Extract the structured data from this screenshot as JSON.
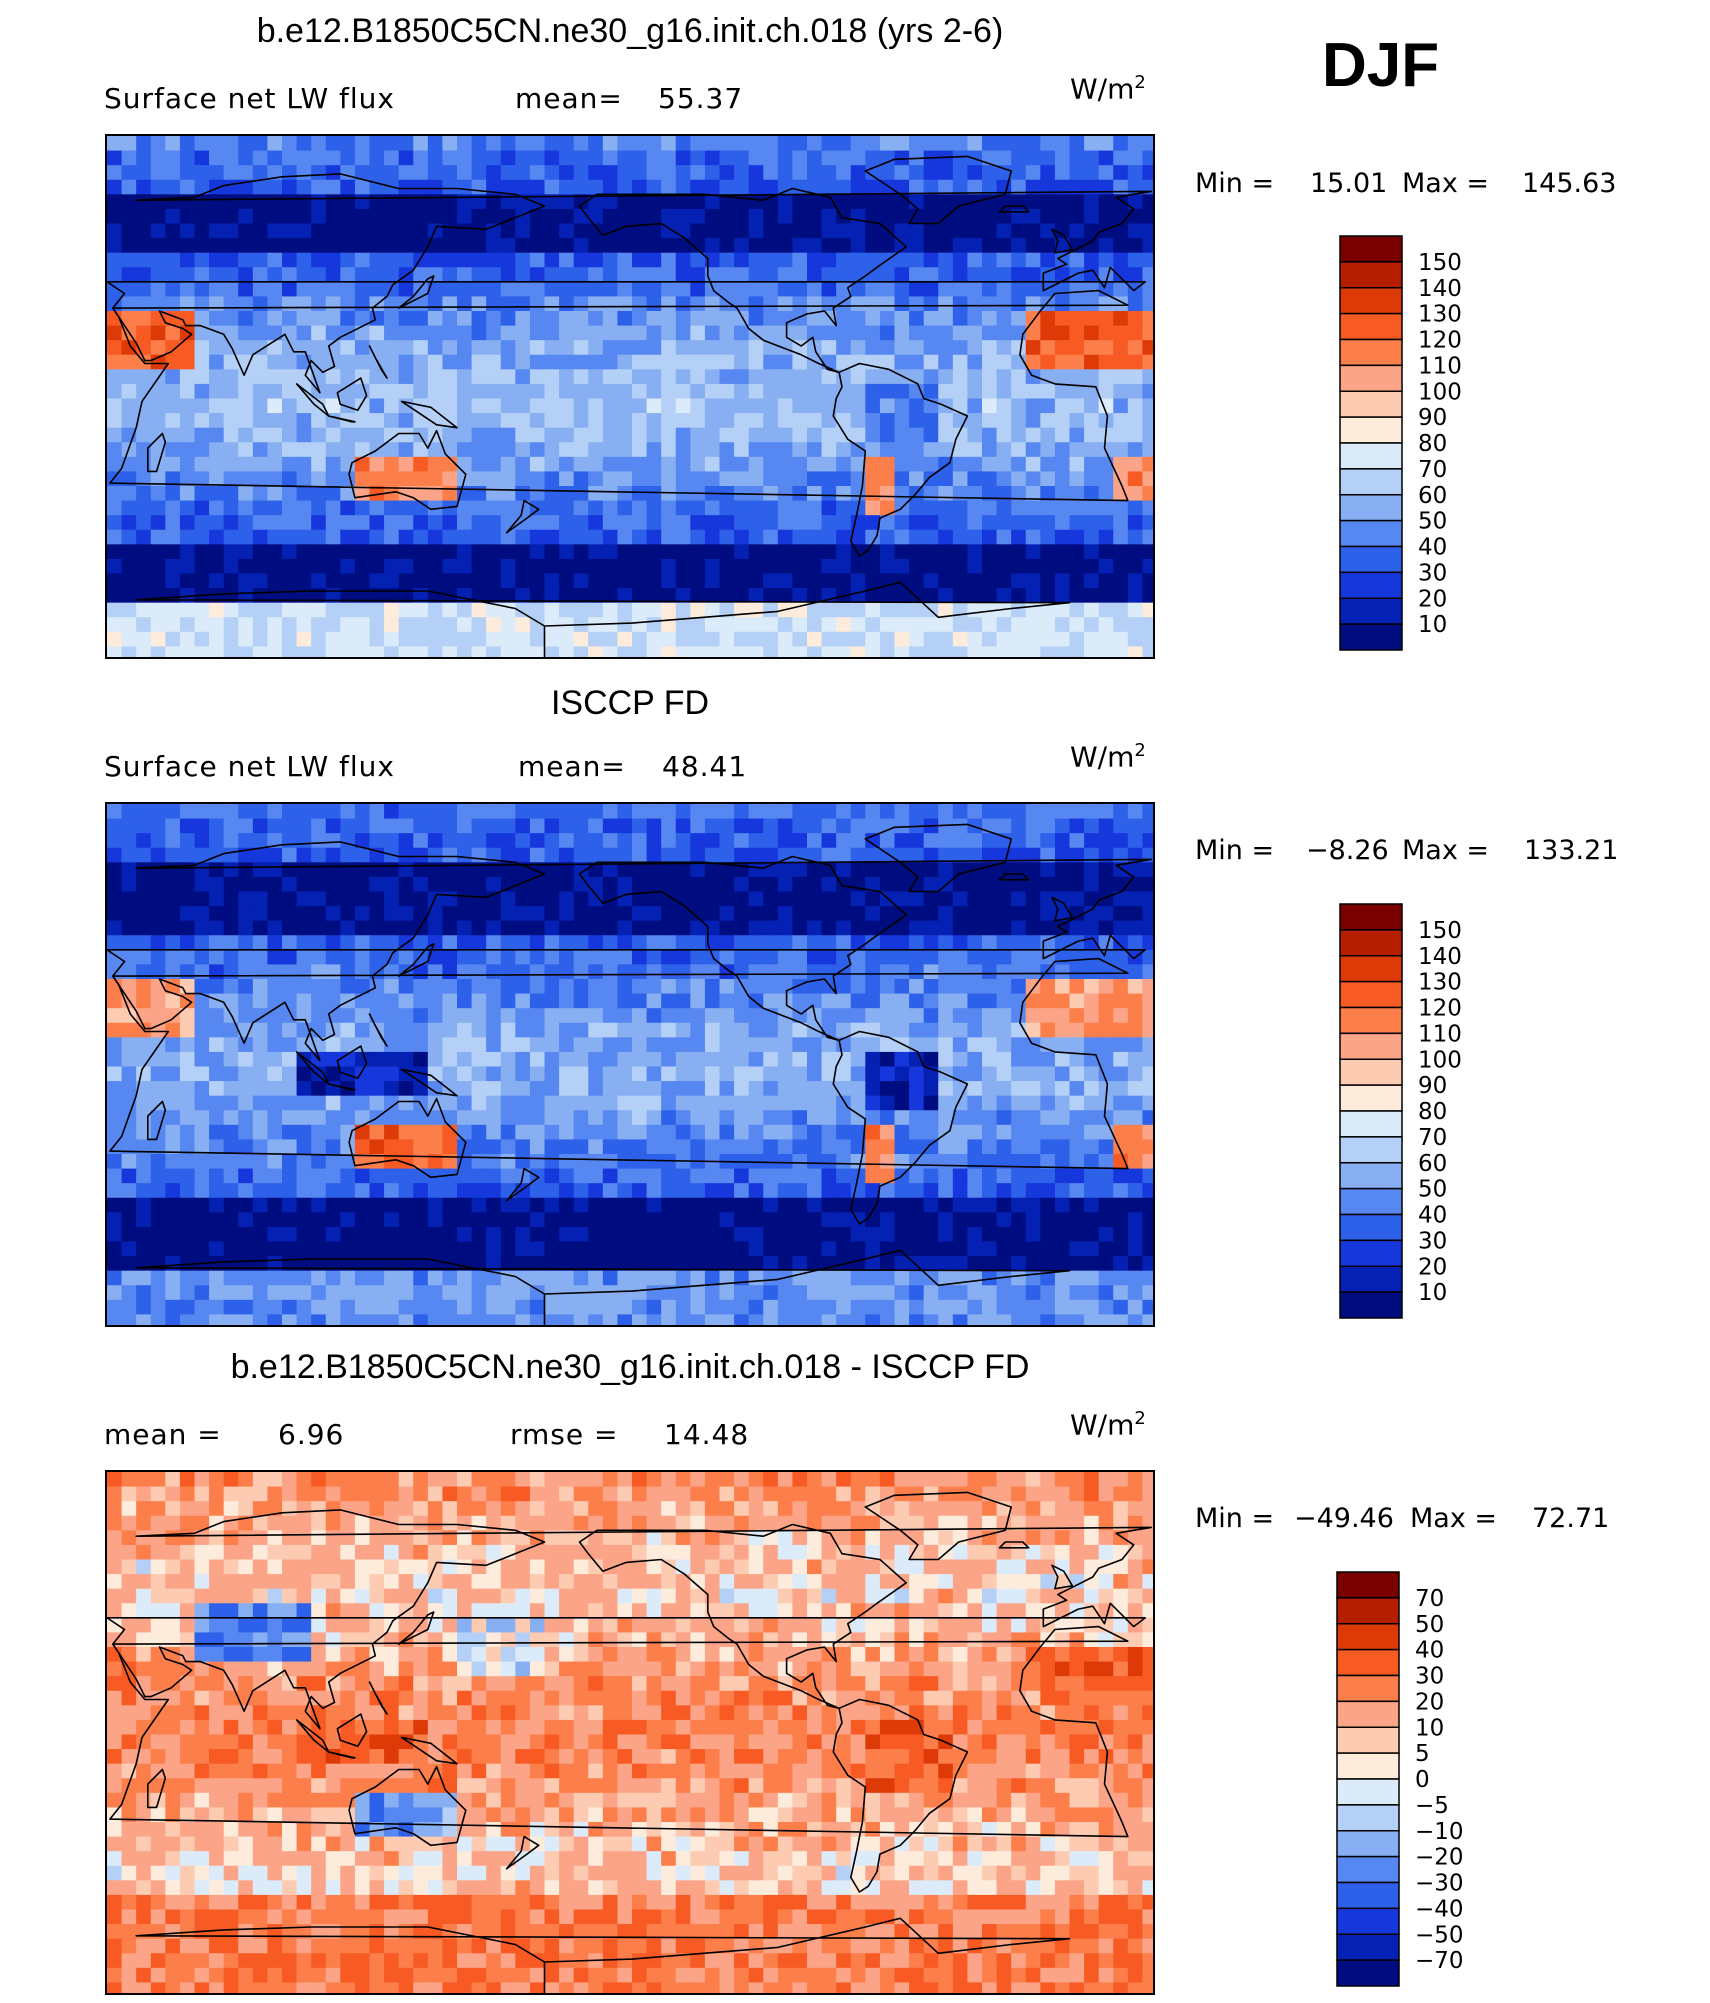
{
  "season": "DJF",
  "panels": [
    {
      "title": "b.e12.B1850C5CN.ne30_g16.init.ch.018 (yrs 2-6)",
      "left_label": "Surface net LW flux",
      "center_label": "mean=",
      "center_value": "55.37",
      "units_base": "W/m",
      "units_exp": "2",
      "min_label": "Min =",
      "min_value": "15.01",
      "max_label": "Max =",
      "max_value": "145.63"
    },
    {
      "title": "ISCCP FD",
      "left_label": "Surface net LW flux",
      "center_label": "mean=",
      "center_value": "48.41",
      "units_base": "W/m",
      "units_exp": "2",
      "min_label": "Min =",
      "min_value": "−8.26",
      "max_label": "Max =",
      "max_value": "133.21"
    },
    {
      "title": "b.e12.B1850C5CN.ne30_g16.init.ch.018 - ISCCP FD",
      "left_label": "mean =",
      "left_value": "6.96",
      "center_label": "rmse =",
      "center_value": "14.48",
      "units_base": "W/m",
      "units_exp": "2",
      "min_label": "Min =",
      "min_value": "−49.46",
      "max_label": "Max =",
      "max_value": "72.71"
    }
  ],
  "chart_data": [
    {
      "type": "heatmap",
      "title": "b.e12.B1850C5CN.ne30_g16.init.ch.018 (yrs 2-6)",
      "variable": "Surface net LW flux",
      "units": "W/m2",
      "mean": 55.37,
      "min": 15.01,
      "max": 145.63,
      "colorbar_levels": [
        150,
        140,
        130,
        120,
        110,
        100,
        90,
        80,
        70,
        60,
        50,
        40,
        30,
        20,
        10
      ],
      "colorbar_colors": [
        "#7a0000",
        "#b51f00",
        "#de3a07",
        "#f75a22",
        "#fb7e4b",
        "#fca487",
        "#fdcbb2",
        "#fdebdc",
        "#dcebf9",
        "#b4d0f6",
        "#87aff2",
        "#5787f0",
        "#2e61ea",
        "#1637dc",
        "#0521b4",
        "#000d80"
      ]
    },
    {
      "type": "heatmap",
      "title": "ISCCP FD",
      "variable": "Surface net LW flux",
      "units": "W/m2",
      "mean": 48.41,
      "min": -8.26,
      "max": 133.21,
      "colorbar_levels": [
        150,
        140,
        130,
        120,
        110,
        100,
        90,
        80,
        70,
        60,
        50,
        40,
        30,
        20,
        10
      ],
      "colorbar_colors": [
        "#7a0000",
        "#b51f00",
        "#de3a07",
        "#f75a22",
        "#fb7e4b",
        "#fca487",
        "#fdcbb2",
        "#fdebdc",
        "#dcebf9",
        "#b4d0f6",
        "#87aff2",
        "#5787f0",
        "#2e61ea",
        "#1637dc",
        "#0521b4",
        "#000d80"
      ]
    },
    {
      "type": "heatmap",
      "title": "b.e12.B1850C5CN.ne30_g16.init.ch.018 - ISCCP FD",
      "units": "W/m2",
      "mean": 6.96,
      "rmse": 14.48,
      "min": -49.46,
      "max": 72.71,
      "colorbar_levels": [
        70,
        50,
        40,
        30,
        20,
        10,
        5,
        0,
        -5,
        -10,
        -20,
        -30,
        -40,
        -50,
        -70
      ],
      "colorbar_labels": [
        "70",
        "50",
        "40",
        "30",
        "20",
        "10",
        "5",
        "0",
        "−5",
        "−10",
        "−20",
        "−30",
        "−40",
        "−50",
        "−70"
      ],
      "colorbar_colors": [
        "#7a0000",
        "#b51f00",
        "#de3a07",
        "#f75a22",
        "#fb7e4b",
        "#fca487",
        "#fdcbb2",
        "#fdebdc",
        "#dcebf9",
        "#b4d0f6",
        "#87aff2",
        "#5787f0",
        "#2e61ea",
        "#1637dc",
        "#0521b4",
        "#000d80"
      ]
    }
  ]
}
